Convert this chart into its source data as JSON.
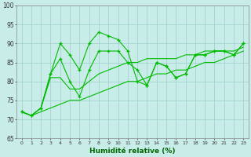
{
  "x": [
    0,
    1,
    2,
    3,
    4,
    5,
    6,
    7,
    8,
    9,
    10,
    11,
    12,
    13,
    14,
    15,
    16,
    17,
    18,
    19,
    20,
    21,
    22,
    23
  ],
  "line_spiky1": [
    72,
    71,
    73,
    82,
    90,
    87,
    83,
    90,
    93,
    92,
    91,
    88,
    80,
    79,
    85,
    84,
    81,
    82,
    87,
    87,
    88,
    88,
    87,
    90
  ],
  "line_spiky2": [
    72,
    71,
    73,
    82,
    86,
    80,
    76,
    83,
    88,
    88,
    88,
    85,
    83,
    79,
    85,
    84,
    81,
    82,
    87,
    87,
    88,
    88,
    87,
    90
  ],
  "line_smooth1": [
    72,
    71,
    73,
    81,
    81,
    78,
    78,
    80,
    82,
    83,
    84,
    85,
    85,
    86,
    86,
    86,
    86,
    87,
    87,
    88,
    88,
    88,
    88,
    89
  ],
  "line_smooth2": [
    72,
    71,
    72,
    73,
    74,
    75,
    75,
    76,
    77,
    78,
    79,
    80,
    80,
    81,
    82,
    82,
    83,
    83,
    84,
    85,
    85,
    86,
    87,
    88
  ],
  "xlabel": "Humidité relative (%)",
  "ylim": [
    65,
    100
  ],
  "xlim": [
    -0.5,
    23.5
  ],
  "yticks": [
    65,
    70,
    75,
    80,
    85,
    90,
    95,
    100
  ],
  "xticks": [
    0,
    1,
    2,
    3,
    4,
    5,
    6,
    7,
    8,
    9,
    10,
    11,
    12,
    13,
    14,
    15,
    16,
    17,
    18,
    19,
    20,
    21,
    22,
    23
  ],
  "line_color": "#00bb00",
  "marker": "+",
  "bg_color": "#c8ece8",
  "grid_color": "#9dcfcc"
}
